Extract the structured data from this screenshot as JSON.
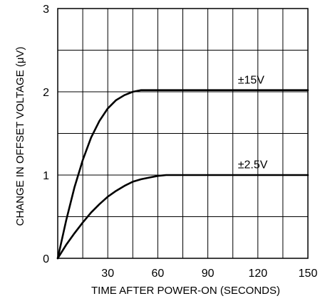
{
  "chart_data": {
    "type": "line",
    "title": "",
    "xlabel": "TIME AFTER POWER-ON (SECONDS)",
    "ylabel": "CHANGE IN OFFSET VOLTAGE (μV)",
    "xlim": [
      0,
      150
    ],
    "ylim": [
      0,
      3
    ],
    "x_ticks": [
      0,
      30,
      60,
      90,
      120,
      150
    ],
    "x_tick_labels": [
      "30",
      "60",
      "90",
      "120",
      "150"
    ],
    "y_ticks": [
      0,
      1,
      2,
      3
    ],
    "y_tick_labels": [
      "0",
      "1",
      "2",
      "3"
    ],
    "x_grid": [
      0,
      15,
      30,
      45,
      60,
      75,
      90,
      105,
      120,
      135,
      150
    ],
    "y_grid": [
      0,
      0.5,
      1,
      1.5,
      2,
      2.5,
      3
    ],
    "grid": true,
    "series": [
      {
        "name": "±15V",
        "x": [
          0,
          5,
          10,
          15,
          20,
          25,
          30,
          35,
          40,
          45,
          50,
          55,
          60,
          75,
          90,
          105,
          120,
          135,
          150
        ],
        "y": [
          0,
          0.45,
          0.85,
          1.18,
          1.45,
          1.65,
          1.8,
          1.9,
          1.96,
          2.0,
          2.02,
          2.02,
          2.02,
          2.02,
          2.02,
          2.02,
          2.02,
          2.02,
          2.02
        ]
      },
      {
        "name": "±2.5V",
        "x": [
          0,
          5,
          10,
          15,
          20,
          25,
          30,
          35,
          40,
          45,
          50,
          55,
          60,
          65,
          70,
          75,
          90,
          105,
          120,
          135,
          150
        ],
        "y": [
          0,
          0.16,
          0.3,
          0.43,
          0.55,
          0.65,
          0.74,
          0.81,
          0.87,
          0.92,
          0.95,
          0.97,
          0.99,
          1.0,
          1.0,
          1.0,
          1.0,
          1.0,
          1.0,
          1.0,
          1.0
        ]
      }
    ],
    "series_labels": [
      {
        "text": "±15V",
        "x": 108,
        "y": 2.1
      },
      {
        "text": "±2.5V",
        "x": 108,
        "y": 1.08
      }
    ]
  }
}
